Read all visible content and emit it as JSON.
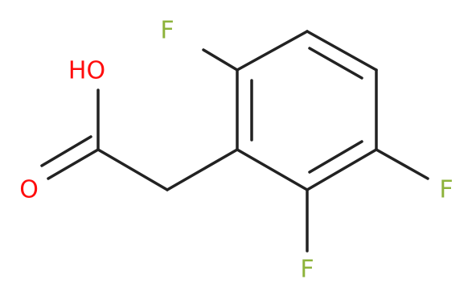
{
  "atoms": [
    {
      "label": "F"
    },
    {
      "label": "F"
    },
    {
      "label": "F"
    },
    {
      "label": "HO"
    },
    {
      "label": "O"
    }
  ]
}
